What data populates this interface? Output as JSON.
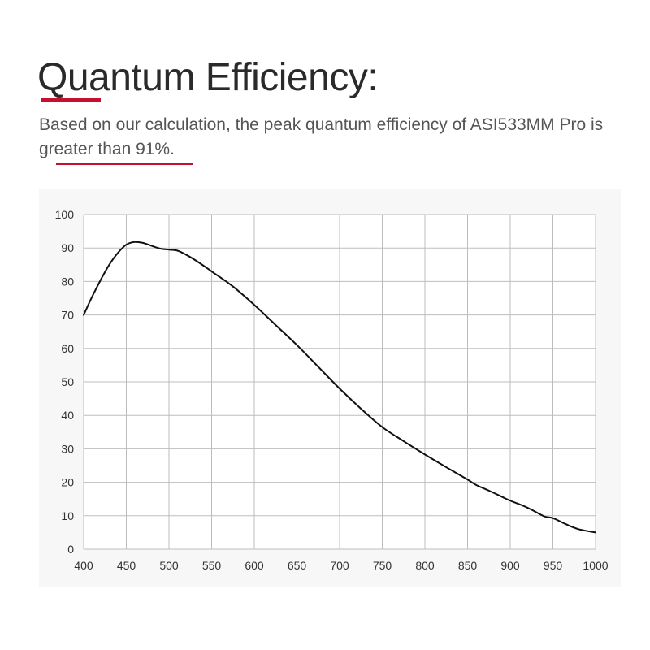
{
  "header": {
    "title": "Quantum Efficiency:",
    "subtitle": "Based on our calculation, the peak quantum efficiency of ASI533MM Pro is greater than 91%."
  },
  "colors": {
    "accent": "#c8102e",
    "line": "#111111",
    "grid": "#bdbdbd",
    "panel": "#f7f7f7"
  },
  "chart_data": {
    "type": "line",
    "title": "",
    "xlabel": "",
    "ylabel": "",
    "xlim": [
      400,
      1000
    ],
    "ylim": [
      0,
      100
    ],
    "xticks": [
      400,
      450,
      500,
      550,
      600,
      650,
      700,
      750,
      800,
      850,
      900,
      950,
      1000
    ],
    "yticks": [
      0,
      10,
      20,
      30,
      40,
      50,
      60,
      70,
      80,
      90,
      100
    ],
    "grid": true,
    "legend": "none",
    "series": [
      {
        "x": [
          400,
          410,
          420,
          430,
          440,
          450,
          460,
          470,
          480,
          490,
          500,
          510,
          520,
          530,
          540,
          550,
          575,
          600,
          625,
          650,
          675,
          700,
          725,
          750,
          775,
          800,
          825,
          850,
          860,
          875,
          890,
          900,
          915,
          925,
          940,
          950,
          965,
          980,
          1000
        ],
        "y": [
          70,
          75.5,
          80.5,
          85,
          88.5,
          91,
          91.8,
          91.5,
          90.6,
          89.8,
          89.5,
          89.2,
          88,
          86.5,
          84.8,
          83,
          78.5,
          73,
          67,
          61,
          54.5,
          48,
          42,
          36.5,
          32.3,
          28.3,
          24.5,
          20.8,
          19.2,
          17.5,
          15.7,
          14.5,
          13,
          11.8,
          9.8,
          9.3,
          7.5,
          6,
          5
        ]
      }
    ]
  }
}
